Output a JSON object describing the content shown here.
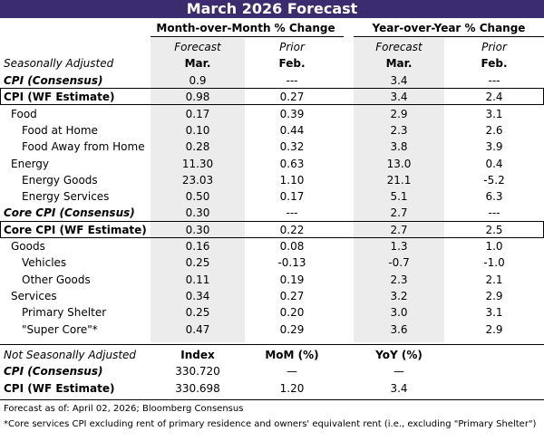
{
  "title": "March 2026 Forecast",
  "headers": {
    "mom": "Month-over-Month % Change",
    "yoy": "Year-over-Year % Change"
  },
  "subheaders": {
    "row1": [
      "Forecast",
      "Prior",
      "Forecast",
      "Prior"
    ],
    "row2": [
      "Mar.",
      "Feb.",
      "Mar.",
      "Feb."
    ]
  },
  "seasonally_adjusted": {
    "label": "Seasonally Adjusted",
    "rows": [
      [
        "CPI (Consensus)",
        "0.9",
        "---",
        "3.4",
        "---"
      ],
      [
        "CPI (WF Estimate)",
        "0.98",
        "0.27",
        "3.4",
        "2.4"
      ],
      [
        "Food",
        "0.17",
        "0.39",
        "2.9",
        "3.1"
      ],
      [
        "Food at Home",
        "0.10",
        "0.44",
        "2.3",
        "2.6"
      ],
      [
        "Food Away from Home",
        "0.28",
        "0.32",
        "3.8",
        "3.9"
      ],
      [
        "Energy",
        "11.30",
        "0.63",
        "13.0",
        "0.4"
      ],
      [
        "Energy Goods",
        "23.03",
        "1.10",
        "21.1",
        "-5.2"
      ],
      [
        "Energy Services",
        "0.50",
        "0.17",
        "5.1",
        "6.3"
      ],
      [
        "Core CPI (Consensus)",
        "0.30",
        "---",
        "2.7",
        "---"
      ],
      [
        "Core CPI (WF Estimate)",
        "0.30",
        "0.22",
        "2.7",
        "2.5"
      ],
      [
        "Goods",
        "0.16",
        "0.08",
        "1.3",
        "1.0"
      ],
      [
        "Vehicles",
        "0.25",
        "-0.13",
        "-0.7",
        "-1.0"
      ],
      [
        "Other Goods",
        "0.11",
        "0.19",
        "2.3",
        "2.1"
      ],
      [
        "Services",
        "0.34",
        "0.27",
        "3.2",
        "2.9"
      ],
      [
        "Primary Shelter",
        "0.25",
        "0.20",
        "3.0",
        "3.1"
      ],
      [
        "\"Super Core\"*",
        "0.47",
        "0.29",
        "3.6",
        "2.9"
      ]
    ]
  },
  "not_seasonally_adjusted": {
    "label": "Not Seasonally Adjusted",
    "columns": [
      "Index",
      "MoM (%)",
      "YoY (%)"
    ],
    "rows": [
      [
        "CPI (Consensus)",
        "330.720",
        "—",
        "—"
      ],
      [
        "CPI (WF Estimate)",
        "330.698",
        "1.20",
        "3.4"
      ]
    ]
  },
  "footnotes": [
    "Forecast as of: April 02, 2026; Bloomberg Consensus",
    "*Core services CPI excluding rent of primary residence and owners' equivalent rent (i.e., excluding \"Primary Shelter\")"
  ]
}
